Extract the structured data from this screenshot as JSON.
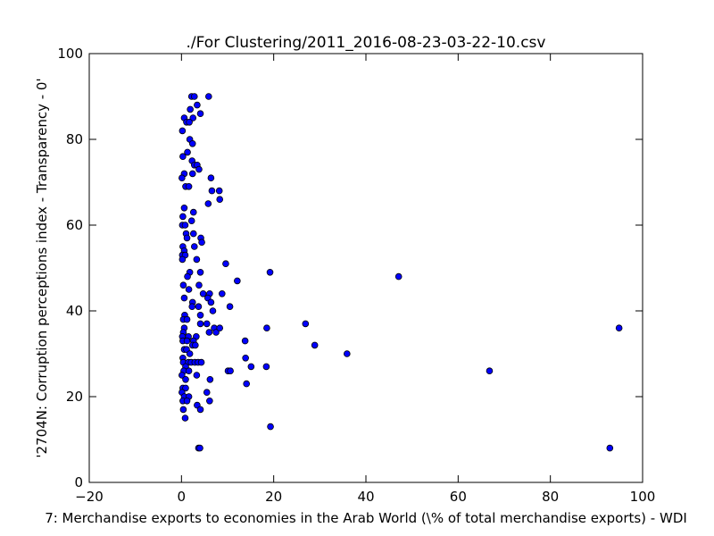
{
  "chart_data": {
    "type": "scatter",
    "title": "./For Clustering/2011_2016-08-23-03-22-10.csv",
    "xlabel": "7: Merchandise exports to economies in the Arab World  (\\% of total merchandise exports) - WDI",
    "ylabel": "'2704N: Corruption perceptions index - Transparency - 0'",
    "xlim": [
      -20,
      100
    ],
    "ylim": [
      0,
      100
    ],
    "xticks": [
      "−20",
      "0",
      "20",
      "40",
      "60",
      "80",
      "100"
    ],
    "yticks": [
      "0",
      "20",
      "40",
      "60",
      "80",
      "100"
    ],
    "xtick_values": [
      -20,
      0,
      20,
      40,
      60,
      80,
      100
    ],
    "ytick_values": [
      0,
      20,
      40,
      60,
      80,
      100
    ],
    "grid": false,
    "legend": "none",
    "marker_color": "#0000ff",
    "points": [
      [
        2.2,
        90
      ],
      [
        2.8,
        90
      ],
      [
        5.9,
        90
      ],
      [
        3.4,
        88
      ],
      [
        1.9,
        87
      ],
      [
        4.1,
        86
      ],
      [
        0.6,
        85
      ],
      [
        2.5,
        85
      ],
      [
        1.1,
        84
      ],
      [
        1.7,
        84
      ],
      [
        0.2,
        82
      ],
      [
        1.8,
        80
      ],
      [
        2.4,
        79
      ],
      [
        1.3,
        77
      ],
      [
        0.3,
        76
      ],
      [
        2.3,
        75
      ],
      [
        2.8,
        74
      ],
      [
        3.4,
        74
      ],
      [
        3.8,
        73
      ],
      [
        0.6,
        72
      ],
      [
        2.4,
        72
      ],
      [
        0.1,
        71
      ],
      [
        6.4,
        71
      ],
      [
        0.9,
        69
      ],
      [
        1.6,
        69
      ],
      [
        6.6,
        68
      ],
      [
        8.2,
        68
      ],
      [
        8.3,
        66
      ],
      [
        5.8,
        65
      ],
      [
        0.6,
        64
      ],
      [
        2.6,
        63
      ],
      [
        0.3,
        62
      ],
      [
        2.2,
        61
      ],
      [
        0.2,
        60
      ],
      [
        0.8,
        60
      ],
      [
        2.6,
        58
      ],
      [
        1.0,
        58
      ],
      [
        1.2,
        57
      ],
      [
        4.2,
        57
      ],
      [
        4.4,
        56
      ],
      [
        0.3,
        55
      ],
      [
        2.8,
        55
      ],
      [
        0.6,
        54
      ],
      [
        0.2,
        53
      ],
      [
        0.8,
        53
      ],
      [
        3.3,
        52
      ],
      [
        0.2,
        52
      ],
      [
        9.6,
        51
      ],
      [
        1.8,
        49
      ],
      [
        1.3,
        48
      ],
      [
        4.1,
        49
      ],
      [
        19.2,
        49
      ],
      [
        47.1,
        48
      ],
      [
        12.1,
        47
      ],
      [
        0.4,
        46
      ],
      [
        3.8,
        46
      ],
      [
        1.6,
        45
      ],
      [
        4.7,
        44
      ],
      [
        6.1,
        44
      ],
      [
        8.8,
        44
      ],
      [
        5.7,
        43
      ],
      [
        0.6,
        43
      ],
      [
        2.4,
        42
      ],
      [
        6.4,
        42
      ],
      [
        2.3,
        41
      ],
      [
        3.7,
        41
      ],
      [
        10.5,
        41
      ],
      [
        6.8,
        40
      ],
      [
        0.7,
        39
      ],
      [
        4.1,
        39
      ],
      [
        0.4,
        38
      ],
      [
        1.2,
        38
      ],
      [
        4.1,
        37
      ],
      [
        5.5,
        37
      ],
      [
        26.9,
        37
      ],
      [
        0.6,
        36
      ],
      [
        7.1,
        36
      ],
      [
        7.5,
        35
      ],
      [
        8.3,
        36
      ],
      [
        18.5,
        36
      ],
      [
        94.9,
        36
      ],
      [
        0.4,
        35
      ],
      [
        6.0,
        35
      ],
      [
        1.5,
        34
      ],
      [
        0.2,
        34
      ],
      [
        3.2,
        34
      ],
      [
        0.3,
        33
      ],
      [
        1.2,
        33
      ],
      [
        2.6,
        33
      ],
      [
        13.8,
        33
      ],
      [
        2.4,
        32
      ],
      [
        3.0,
        32
      ],
      [
        28.9,
        32
      ],
      [
        0.6,
        31
      ],
      [
        1.1,
        31
      ],
      [
        1.8,
        30
      ],
      [
        35.9,
        30
      ],
      [
        0.3,
        29
      ],
      [
        13.9,
        29
      ],
      [
        0.4,
        28
      ],
      [
        1.5,
        28
      ],
      [
        2.1,
        28
      ],
      [
        2.9,
        28
      ],
      [
        3.6,
        28
      ],
      [
        4.3,
        28
      ],
      [
        0.9,
        27
      ],
      [
        15.1,
        27
      ],
      [
        18.4,
        27
      ],
      [
        0.5,
        26
      ],
      [
        1.6,
        26
      ],
      [
        10.1,
        26
      ],
      [
        10.6,
        26
      ],
      [
        66.8,
        26
      ],
      [
        0.1,
        25
      ],
      [
        3.3,
        25
      ],
      [
        0.9,
        24
      ],
      [
        6.2,
        24
      ],
      [
        14.1,
        23
      ],
      [
        0.3,
        22
      ],
      [
        0.9,
        22
      ],
      [
        0.1,
        21
      ],
      [
        5.5,
        21
      ],
      [
        0.6,
        20
      ],
      [
        1.6,
        20
      ],
      [
        0.3,
        19
      ],
      [
        1.2,
        19
      ],
      [
        6.1,
        19
      ],
      [
        3.4,
        18
      ],
      [
        4.1,
        17
      ],
      [
        0.4,
        17
      ],
      [
        0.8,
        15
      ],
      [
        19.3,
        13
      ],
      [
        3.7,
        8
      ],
      [
        4.0,
        8
      ],
      [
        92.9,
        8
      ]
    ]
  }
}
